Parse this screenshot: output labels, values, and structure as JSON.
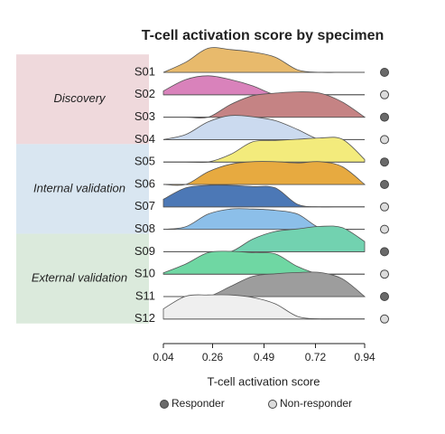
{
  "chart_data": {
    "type": "ridgeline",
    "title": "T-cell activation score by specimen",
    "xlabel": "T-cell activation score",
    "xlim": [
      0.04,
      0.94
    ],
    "xticks": [
      0.04,
      0.26,
      0.49,
      0.72,
      0.94
    ],
    "x": [
      0.04,
      0.14,
      0.24,
      0.34,
      0.44,
      0.54,
      0.64,
      0.74,
      0.84,
      0.94
    ],
    "groups": [
      {
        "label": "Discovery",
        "color": "#efd9dc",
        "members": [
          "S01",
          "S02",
          "S03",
          "S04"
        ]
      },
      {
        "label": "Internal validation",
        "color": "#d9e6f1",
        "members": [
          "S05",
          "S06",
          "S07",
          "S08"
        ]
      },
      {
        "label": "External validation",
        "color": "#dbeadc",
        "members": [
          "S09",
          "S10",
          "S11",
          "S12"
        ]
      }
    ],
    "legend": [
      {
        "label": "Responder",
        "color": "#6a6a6a"
      },
      {
        "label": "Non-responder",
        "color": "#dcdcdc"
      }
    ],
    "series": [
      {
        "name": "S01",
        "color": "#e8ba6c",
        "status": "Responder",
        "values": [
          0,
          0.4,
          0.95,
          0.9,
          0.8,
          0.6,
          0.1,
          0,
          0,
          0
        ]
      },
      {
        "name": "S02",
        "color": "#d982bb",
        "status": "Non-responder",
        "values": [
          0.15,
          0.6,
          0.75,
          0.6,
          0.35,
          0,
          0,
          0,
          0,
          0
        ]
      },
      {
        "name": "S03",
        "color": "#c58384",
        "status": "Responder",
        "values": [
          0,
          0,
          0,
          0.5,
          0.85,
          0.95,
          1,
          0.95,
          0.6,
          0
        ]
      },
      {
        "name": "S04",
        "color": "#cbdaef",
        "status": "Non-responder",
        "values": [
          0,
          0.2,
          0.7,
          0.95,
          0.9,
          0.75,
          0.4,
          0,
          0,
          0
        ]
      },
      {
        "name": "S05",
        "color": "#f3eb7c",
        "status": "Responder",
        "values": [
          0,
          0,
          0,
          0.3,
          0.8,
          0.85,
          0.9,
          0.95,
          0.9,
          0.1
        ]
      },
      {
        "name": "S06",
        "color": "#e7aa40",
        "status": "Responder",
        "values": [
          0,
          0,
          0.5,
          0.8,
          0.9,
          0.9,
          0.85,
          0.9,
          0.7,
          0
        ]
      },
      {
        "name": "S07",
        "color": "#4c78b6",
        "status": "Non-responder",
        "values": [
          0.3,
          0.75,
          0.85,
          0.85,
          0.8,
          0.75,
          0.1,
          0,
          0,
          0
        ]
      },
      {
        "name": "S08",
        "color": "#8cbfe9",
        "status": "Non-responder",
        "values": [
          0,
          0.1,
          0.6,
          0.8,
          0.8,
          0.75,
          0.6,
          0.05,
          0,
          0
        ]
      },
      {
        "name": "S09",
        "color": "#72d2b0",
        "status": "Responder",
        "values": [
          0,
          0,
          0,
          0,
          0.5,
          0.8,
          0.9,
          1,
          0.95,
          0.4
        ]
      },
      {
        "name": "S10",
        "color": "#6fd7a3",
        "status": "Non-responder",
        "values": [
          0.05,
          0.4,
          0.85,
          0.9,
          0.85,
          0.8,
          0.3,
          0,
          0,
          0
        ]
      },
      {
        "name": "S11",
        "color": "#9d9d9d",
        "status": "Responder",
        "values": [
          0,
          0,
          0,
          0.4,
          0.8,
          0.9,
          0.95,
          0.95,
          0.7,
          0
        ]
      },
      {
        "name": "S12",
        "color": "#efefef",
        "status": "Non-responder",
        "values": [
          0.4,
          0.9,
          0.95,
          0.95,
          0.85,
          0.6,
          0.1,
          0,
          0,
          0
        ]
      }
    ]
  }
}
